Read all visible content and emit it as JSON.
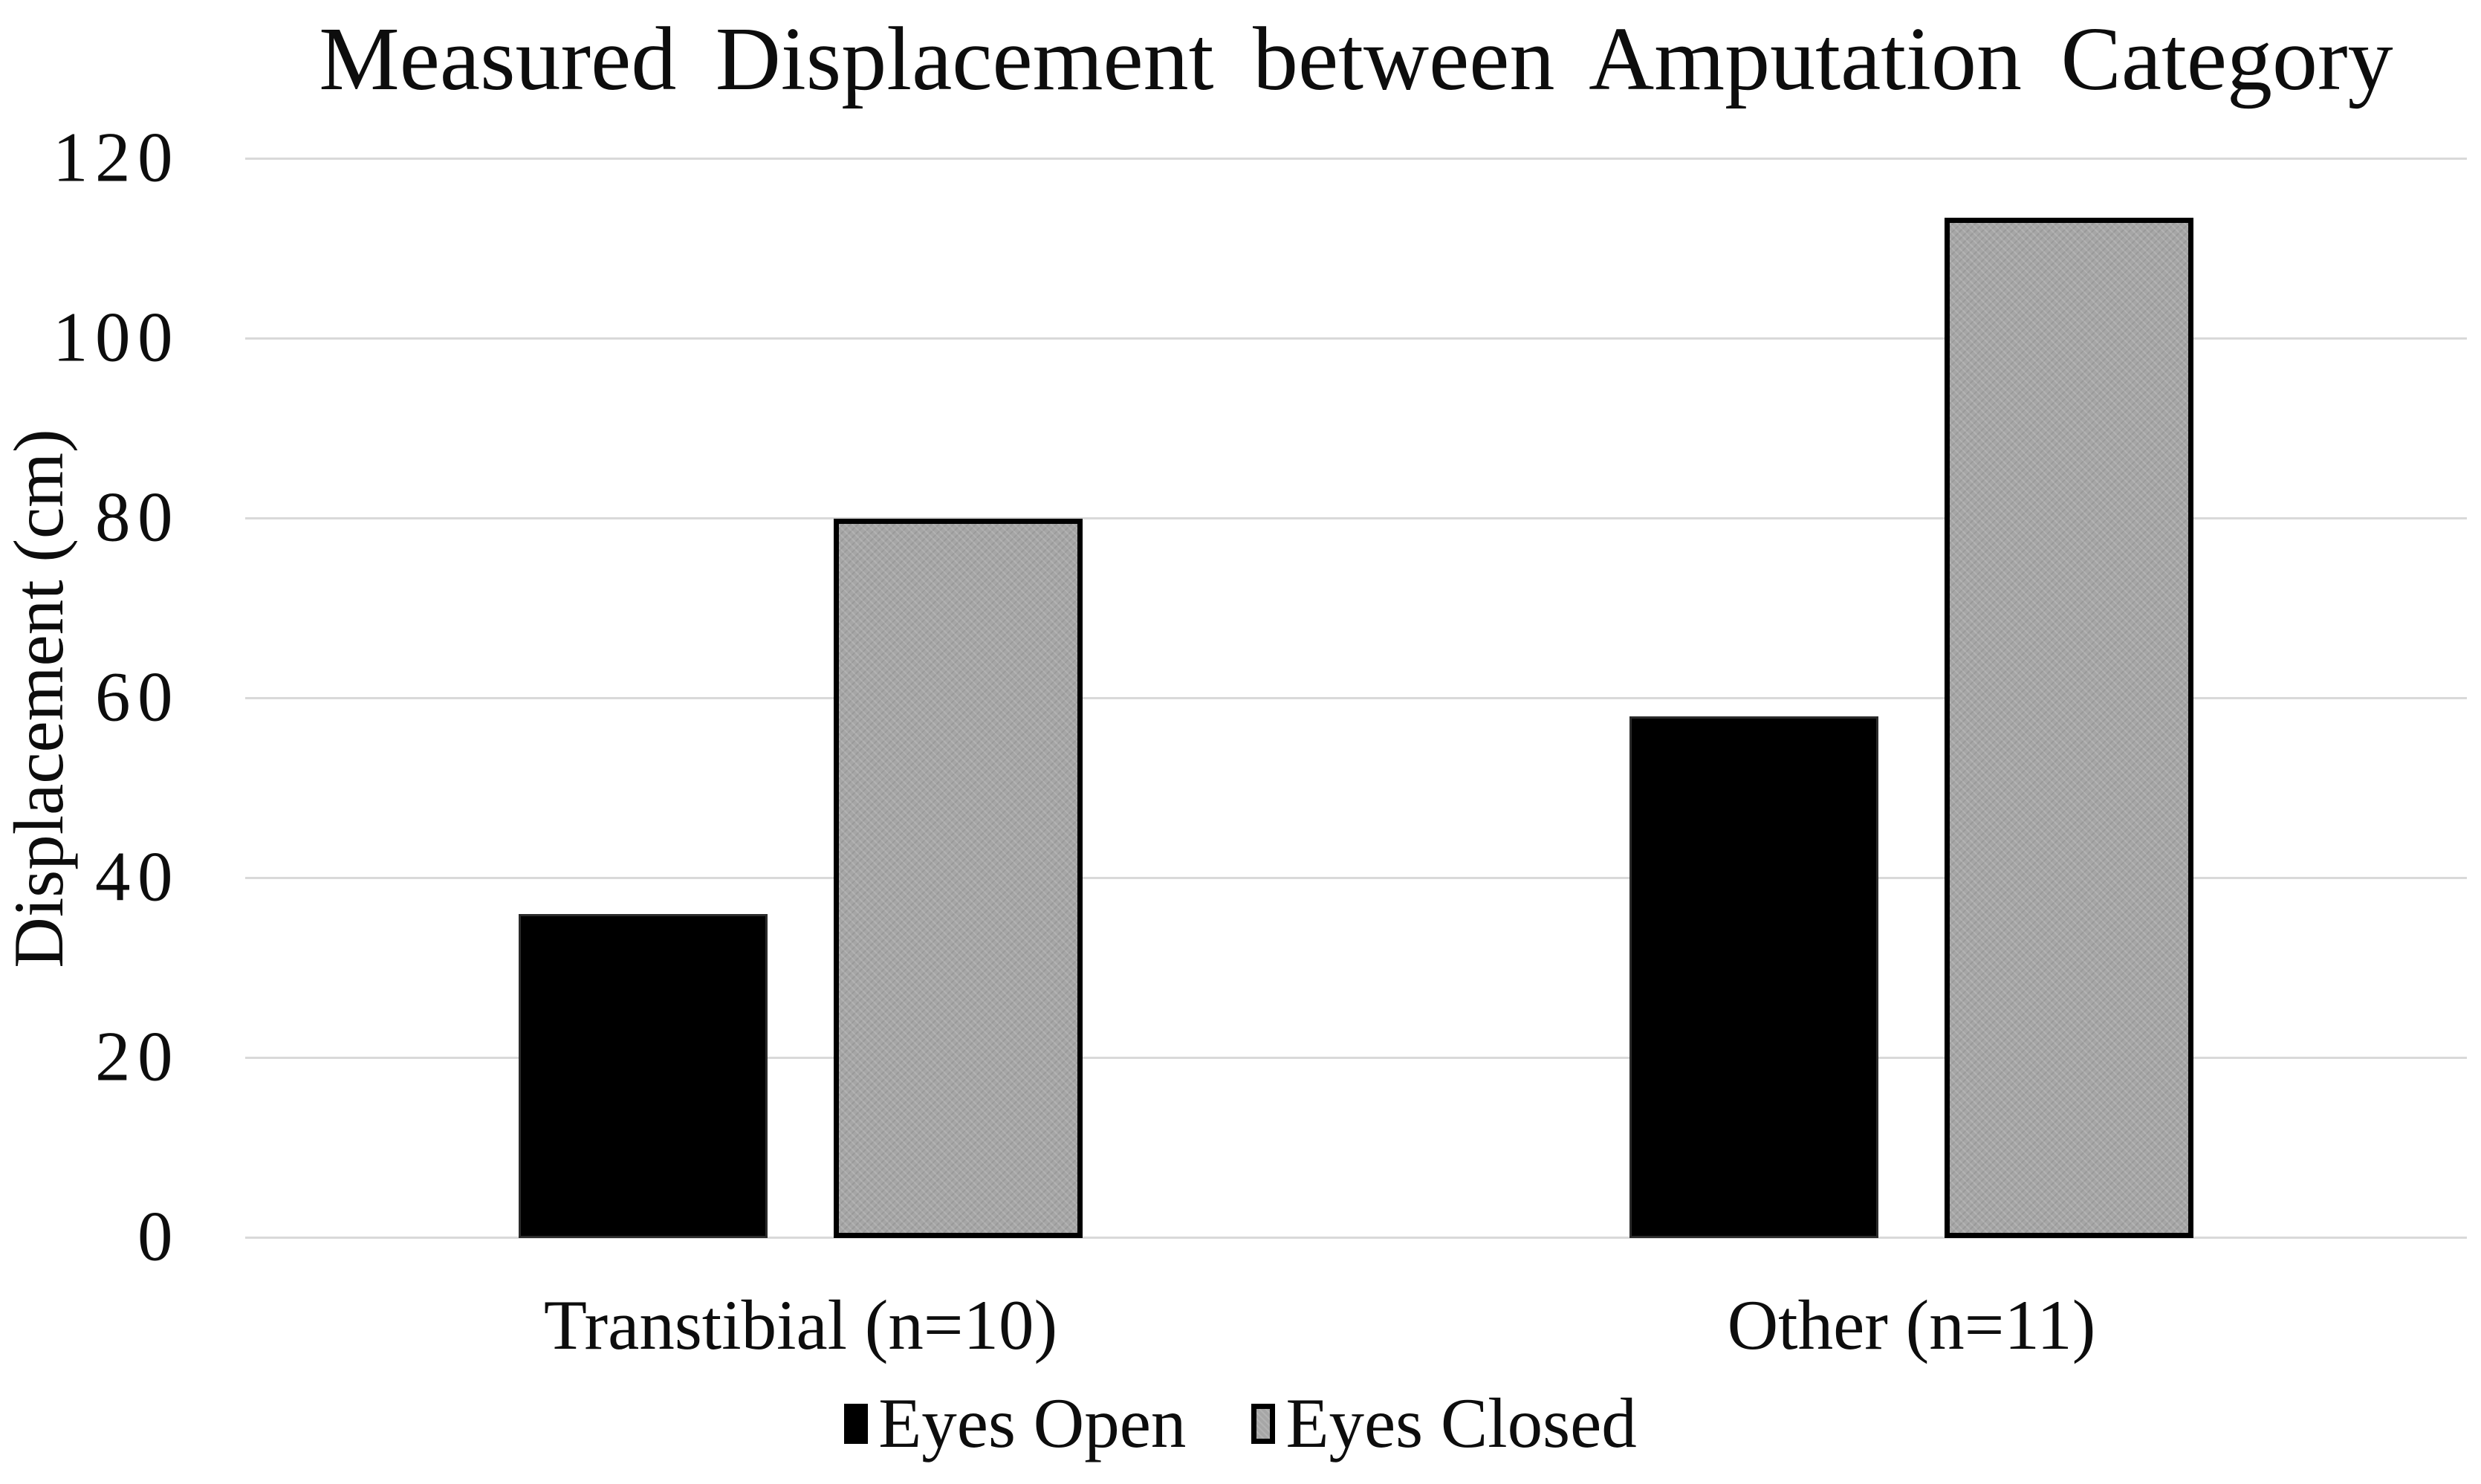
{
  "chart_data": {
    "type": "bar",
    "title": "Measured Displacement between Amputation Category",
    "xlabel": "",
    "ylabel": "Displacement (cm)",
    "categories": [
      "Transtibial (n=10)",
      "Other (n=11)"
    ],
    "series": [
      {
        "name": "Eyes Open",
        "color": "#000000",
        "values": [
          36,
          58
        ]
      },
      {
        "name": "Eyes Closed",
        "color": "#a6a6a6",
        "values": [
          80,
          113.5
        ]
      }
    ],
    "ylim": [
      0,
      120
    ],
    "yticks": [
      0,
      20,
      40,
      60,
      80,
      100,
      120
    ],
    "grid": true,
    "gridline_color": "#d9d9d9",
    "legend_position": "bottom"
  }
}
